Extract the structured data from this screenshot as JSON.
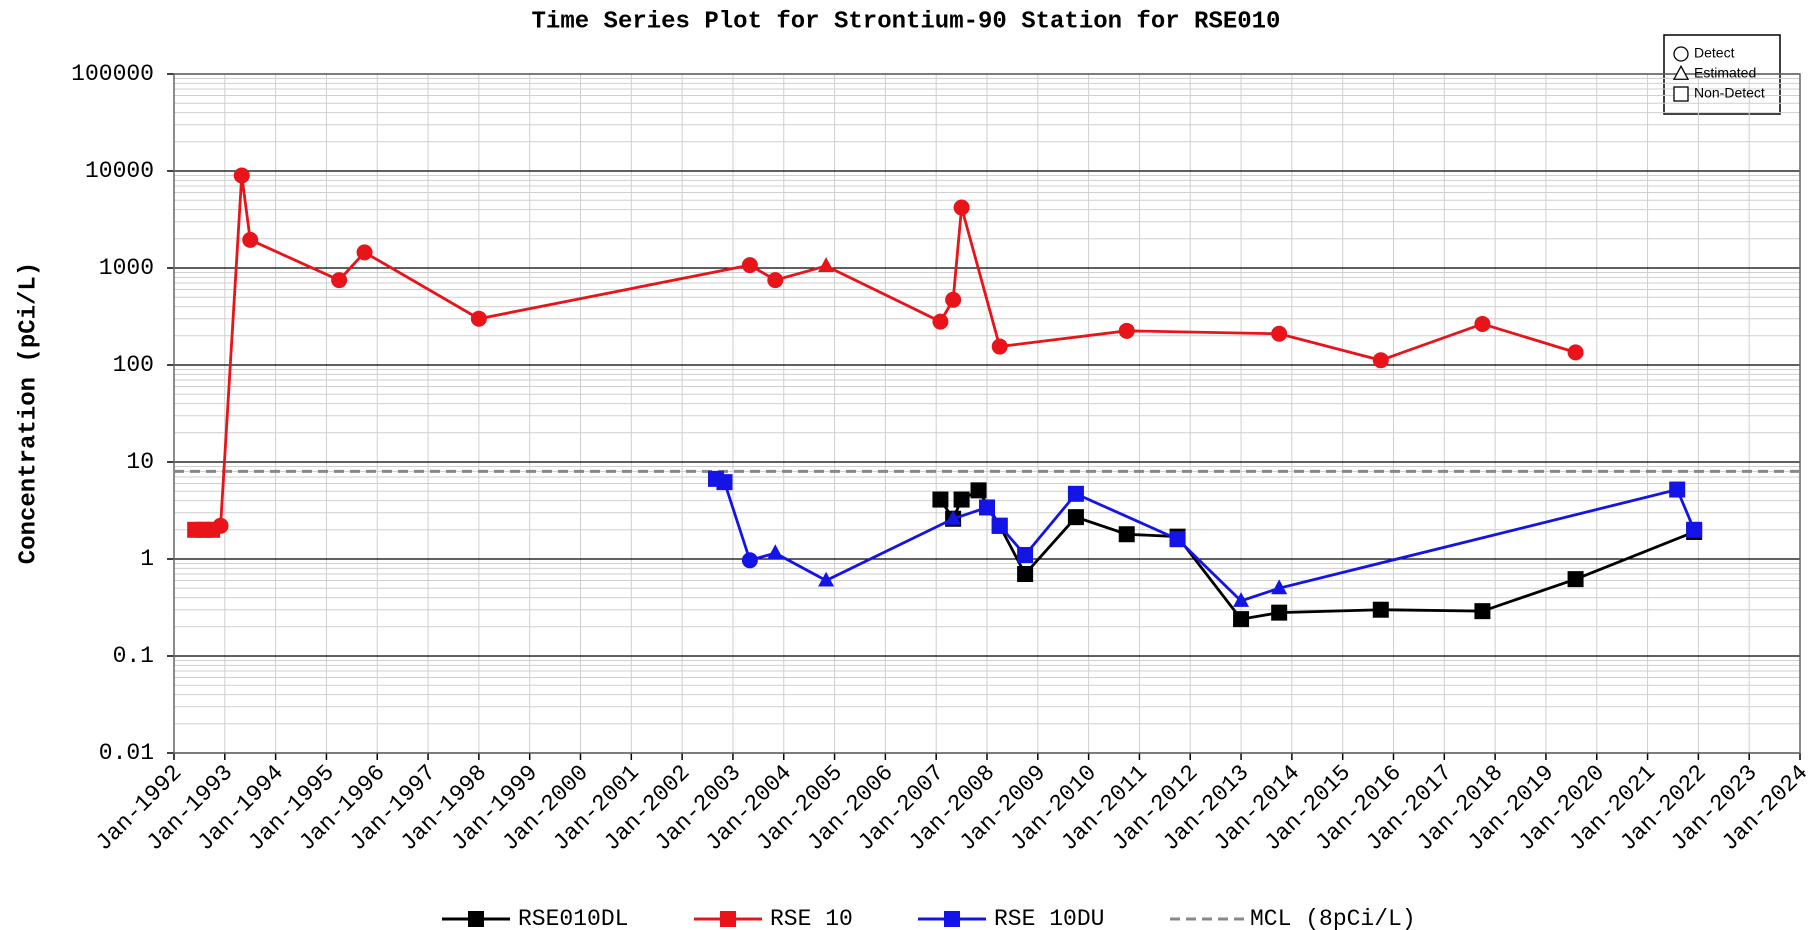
{
  "chart_data": {
    "type": "line",
    "title": "Time Series Plot for Strontium-90 Station for RSE010",
    "y_label": "Concentration (pCi/L)",
    "log_scale": true,
    "grid": true,
    "minor_grid": true,
    "xlim": [
      "1992-01",
      "2024-01"
    ],
    "xticks": [
      {
        "value": "1992-01",
        "label": "Jan-1992"
      },
      {
        "value": "1993-01",
        "label": "Jan-1993"
      },
      {
        "value": "1994-01",
        "label": "Jan-1994"
      },
      {
        "value": "1995-01",
        "label": "Jan-1995"
      },
      {
        "value": "1996-01",
        "label": "Jan-1996"
      },
      {
        "value": "1997-01",
        "label": "Jan-1997"
      },
      {
        "value": "1998-01",
        "label": "Jan-1998"
      },
      {
        "value": "1999-01",
        "label": "Jan-1999"
      },
      {
        "value": "2000-01",
        "label": "Jan-2000"
      },
      {
        "value": "2001-01",
        "label": "Jan-2001"
      },
      {
        "value": "2002-01",
        "label": "Jan-2002"
      },
      {
        "value": "2003-01",
        "label": "Jan-2003"
      },
      {
        "value": "2004-01",
        "label": "Jan-2004"
      },
      {
        "value": "2005-01",
        "label": "Jan-2005"
      },
      {
        "value": "2006-01",
        "label": "Jan-2006"
      },
      {
        "value": "2007-01",
        "label": "Jan-2007"
      },
      {
        "value": "2008-01",
        "label": "Jan-2008"
      },
      {
        "value": "2009-01",
        "label": "Jan-2009"
      },
      {
        "value": "2010-01",
        "label": "Jan-2010"
      },
      {
        "value": "2011-01",
        "label": "Jan-2011"
      },
      {
        "value": "2012-01",
        "label": "Jan-2012"
      },
      {
        "value": "2013-01",
        "label": "Jan-2013"
      },
      {
        "value": "2014-01",
        "label": "Jan-2014"
      },
      {
        "value": "2015-01",
        "label": "Jan-2015"
      },
      {
        "value": "2016-01",
        "label": "Jan-2016"
      },
      {
        "value": "2017-01",
        "label": "Jan-2017"
      },
      {
        "value": "2018-01",
        "label": "Jan-2018"
      },
      {
        "value": "2019-01",
        "label": "Jan-2019"
      },
      {
        "value": "2020-01",
        "label": "Jan-2020"
      },
      {
        "value": "2021-01",
        "label": "Jan-2021"
      },
      {
        "value": "2022-01",
        "label": "Jan-2022"
      },
      {
        "value": "2023-01",
        "label": "Jan-2023"
      },
      {
        "value": "2024-01",
        "label": "Jan-2024"
      }
    ],
    "ylim": [
      0.01,
      100000
    ],
    "yticks": [
      0.01,
      0.1,
      1,
      10,
      100,
      1000,
      10000,
      100000
    ],
    "marker_legend": [
      {
        "label": "Detect",
        "shape": "circle"
      },
      {
        "label": "Estimated",
        "shape": "triangle"
      },
      {
        "label": "Non-Detect",
        "shape": "square"
      }
    ],
    "series": [
      {
        "name": "RSE010DL",
        "color": "#000000",
        "x": [
          "2007-02",
          "2007-05",
          "2007-07",
          "2007-11",
          "2008-04",
          "2008-10",
          "2009-10",
          "2010-10",
          "2011-10",
          "2013-01",
          "2013-10",
          "2015-10",
          "2017-10",
          "2019-08",
          "2021-12"
        ],
        "values": [
          4.1,
          2.6,
          4.1,
          5.1,
          2.2,
          0.7,
          2.7,
          1.8,
          1.7,
          0.24,
          0.28,
          0.3,
          0.29,
          0.62,
          1.9
        ],
        "markers": [
          "square",
          "square",
          "square",
          "square",
          "square",
          "square",
          "square",
          "square",
          "square",
          "square",
          "square",
          "square",
          "square",
          "square",
          "square"
        ]
      },
      {
        "name": "RSE 10",
        "color": "#e8141a",
        "x": [
          "1992-06",
          "1992-08",
          "1992-10",
          "1992-12",
          "1993-05",
          "1993-07",
          "1995-04",
          "1995-10",
          "1998-01",
          "2003-05",
          "2003-11",
          "2004-11",
          "2007-02",
          "2007-05",
          "2007-07",
          "2008-04",
          "2010-10",
          "2013-10",
          "2015-10",
          "2017-10",
          "2019-08"
        ],
        "values": [
          2.0,
          2.0,
          2.0,
          2.2,
          9000,
          1950,
          750,
          1450,
          300,
          1070,
          750,
          1050,
          280,
          470,
          4200,
          155,
          225,
          210,
          112,
          265,
          135
        ],
        "markers": [
          "square",
          "square",
          "square",
          "circle",
          "circle",
          "circle",
          "circle",
          "circle",
          "circle",
          "circle",
          "circle",
          "triangle",
          "circle",
          "circle",
          "circle",
          "circle",
          "circle",
          "circle",
          "circle",
          "circle",
          "circle"
        ]
      },
      {
        "name": "RSE 10DU",
        "color": "#1414e6",
        "x": [
          "2002-09",
          "2002-11",
          "2003-05",
          "2003-11",
          "2004-11",
          "2007-05",
          "2008-01",
          "2008-04",
          "2008-10",
          "2009-10",
          "2011-10",
          "2013-01",
          "2013-10",
          "2021-08",
          "2021-12"
        ],
        "values": [
          6.7,
          6.2,
          0.97,
          1.15,
          0.6,
          2.6,
          3.4,
          2.2,
          1.1,
          4.7,
          1.6,
          0.37,
          0.5,
          5.2,
          2.0
        ],
        "markers": [
          "square",
          "square",
          "circle",
          "triangle",
          "triangle",
          "triangle",
          "square",
          "square",
          "square",
          "square",
          "square",
          "triangle",
          "triangle",
          "square",
          "square"
        ]
      }
    ],
    "reference_lines": [
      {
        "name": "MCL (8pCi/L)",
        "value": 8,
        "color": "#888888",
        "dashed": true
      }
    ]
  }
}
